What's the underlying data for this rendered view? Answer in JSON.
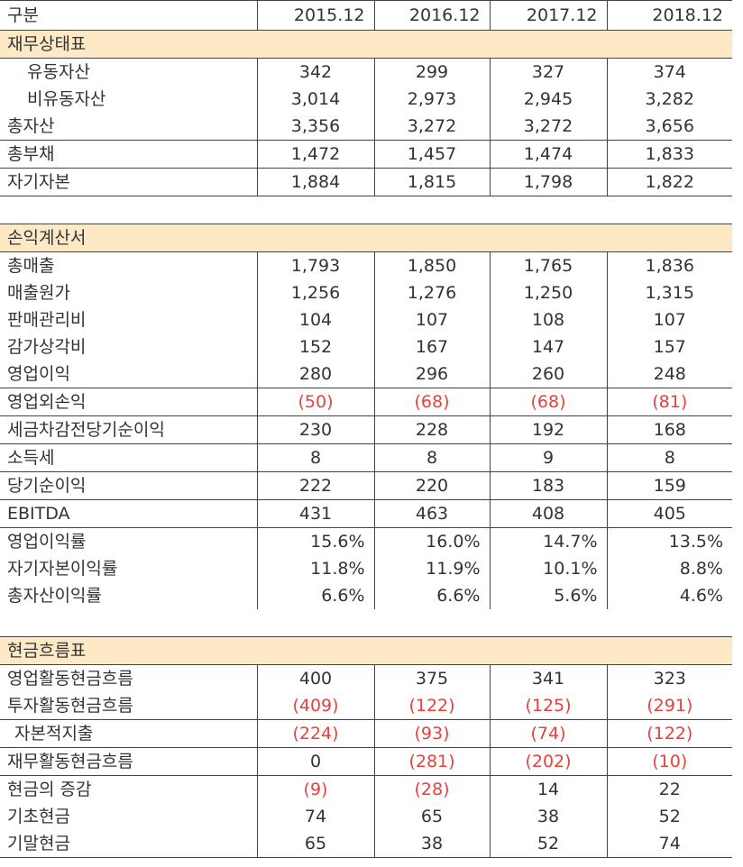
{
  "table": {
    "header": [
      "구분",
      "2015.12",
      "2016.12",
      "2017.12",
      "2018.12"
    ],
    "sections": [
      {
        "title": "재무상태표",
        "rows": [
          {
            "label": "유동자산",
            "values": [
              "342",
              "299",
              "327",
              "374"
            ]
          },
          {
            "label": "비유동자산",
            "values": [
              "3,014",
              "2,973",
              "2,945",
              "3,282"
            ]
          },
          {
            "label": "총자산",
            "values": [
              "3,356",
              "3,272",
              "3,272",
              "3,656"
            ]
          },
          {
            "label": "총부채",
            "values": [
              "1,472",
              "1,457",
              "1,474",
              "1,833"
            ]
          },
          {
            "label": "자기자본",
            "values": [
              "1,884",
              "1,815",
              "1,798",
              "1,822"
            ]
          }
        ]
      },
      {
        "title": "손익계산서",
        "rows": [
          {
            "label": "총매출",
            "values": [
              "1,793",
              "1,850",
              "1,765",
              "1,836"
            ]
          },
          {
            "label": "매출원가",
            "values": [
              "1,256",
              "1,276",
              "1,250",
              "1,315"
            ]
          },
          {
            "label": "판매관리비",
            "values": [
              "104",
              "107",
              "108",
              "107"
            ]
          },
          {
            "label": "감가상각비",
            "values": [
              "152",
              "167",
              "147",
              "157"
            ]
          },
          {
            "label": "영업이익",
            "values": [
              "280",
              "296",
              "260",
              "248"
            ]
          },
          {
            "label": "영업외손익",
            "values": [
              "(50)",
              "(68)",
              "(68)",
              "(81)"
            ]
          },
          {
            "label": "세금차감전당기순이익",
            "values": [
              "230",
              "228",
              "192",
              "168"
            ]
          },
          {
            "label": "소득세",
            "values": [
              "8",
              "8",
              "9",
              "8"
            ]
          },
          {
            "label": "당기순이익",
            "values": [
              "222",
              "220",
              "183",
              "159"
            ]
          },
          {
            "label": "EBITDA",
            "values": [
              "431",
              "463",
              "408",
              "405"
            ]
          },
          {
            "label": "영업이익률",
            "values": [
              "15.6%",
              "16.0%",
              "14.7%",
              "13.5%"
            ]
          },
          {
            "label": "자기자본이익률",
            "values": [
              "11.8%",
              "11.9%",
              "10.1%",
              "8.8%"
            ]
          },
          {
            "label": "총자산이익률",
            "values": [
              "6.6%",
              "6.6%",
              "5.6%",
              "4.6%"
            ]
          }
        ]
      },
      {
        "title": "현금흐름표",
        "rows": [
          {
            "label": "영업활동현금흐름",
            "values": [
              "400",
              "375",
              "341",
              "323"
            ]
          },
          {
            "label": "투자활동현금흐름",
            "values": [
              "(409)",
              "(122)",
              "(125)",
              "(291)"
            ]
          },
          {
            "label": "자본적지출",
            "values": [
              "(224)",
              "(93)",
              "(74)",
              "(122)"
            ]
          },
          {
            "label": "재무활동현금흐름",
            "values": [
              "0",
              "(281)",
              "(202)",
              "(10)"
            ]
          },
          {
            "label": "현금의 증감",
            "values": [
              "(9)",
              "(28)",
              "14",
              "22"
            ]
          },
          {
            "label": "기초현금",
            "values": [
              "74",
              "65",
              "38",
              "52"
            ]
          },
          {
            "label": "기말현금",
            "values": [
              "65",
              "38",
              "52",
              "74"
            ]
          }
        ]
      }
    ]
  }
}
